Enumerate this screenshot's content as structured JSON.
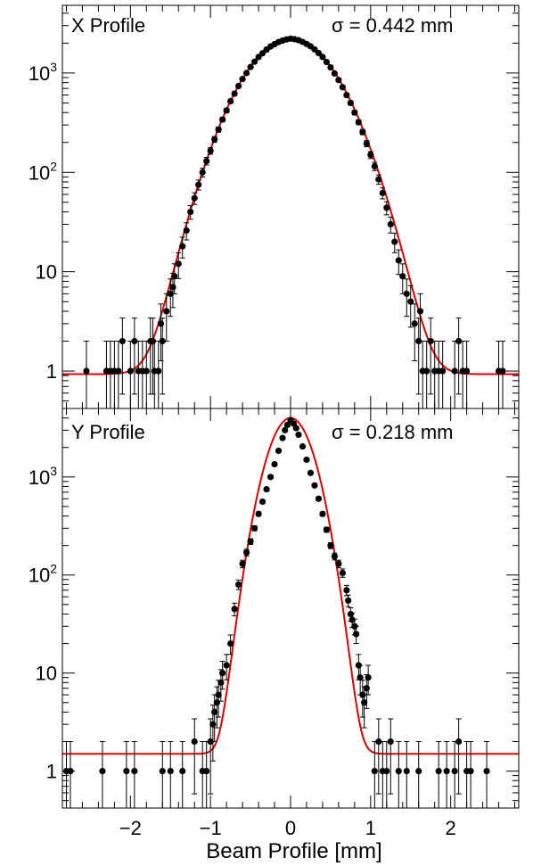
{
  "chart_data": [
    {
      "type": "scatter",
      "title": "X Profile",
      "annotation": "σ = 0.442 mm",
      "sigma_mm": 0.442,
      "amplitude": 2200,
      "baseline": 0.93,
      "xlabel": "",
      "ylabel": "",
      "xlim": [
        -2.85,
        2.85
      ],
      "ylim": [
        0.42,
        4800
      ],
      "yscale": "log",
      "x_ticks": [
        -2,
        -1,
        0,
        1,
        2
      ],
      "x_tick_labels": [],
      "y_ticks": [
        1,
        10,
        100,
        1000
      ],
      "y_tick_labels": [
        {
          "base": "1",
          "exp": ""
        },
        {
          "base": "10",
          "exp": ""
        },
        {
          "base": "10",
          "exp": "2"
        },
        {
          "base": "10",
          "exp": "3"
        }
      ],
      "series": [
        {
          "kind": "points",
          "color": "#000000",
          "points": [
            [
              -2.55,
              1
            ],
            [
              -2.3,
              1
            ],
            [
              -2.25,
              1
            ],
            [
              -2.2,
              1
            ],
            [
              -2.15,
              1
            ],
            [
              -2.1,
              2
            ],
            [
              -2.0,
              1
            ],
            [
              -1.95,
              2
            ],
            [
              -1.9,
              1
            ],
            [
              -1.85,
              1
            ],
            [
              -1.8,
              1
            ],
            [
              -1.75,
              2
            ],
            [
              -1.72,
              2
            ],
            [
              -1.7,
              1
            ],
            [
              -1.65,
              1
            ],
            [
              -1.62,
              3
            ],
            [
              -1.6,
              2
            ],
            [
              -1.55,
              4
            ],
            [
              -1.5,
              6
            ],
            [
              -1.47,
              7
            ],
            [
              -1.45,
              9
            ],
            [
              -1.4,
              12
            ],
            [
              -1.35,
              18
            ],
            [
              -1.3,
              26
            ],
            [
              -1.25,
              40
            ],
            [
              -1.2,
              55
            ],
            [
              -1.15,
              75
            ],
            [
              -1.1,
              100
            ],
            [
              -1.05,
              130
            ],
            [
              -1.0,
              165
            ],
            [
              -0.95,
              215
            ],
            [
              -0.9,
              270
            ],
            [
              -0.85,
              340
            ],
            [
              -0.8,
              420
            ],
            [
              -0.75,
              520
            ],
            [
              -0.7,
              620
            ],
            [
              -0.65,
              740
            ],
            [
              -0.6,
              870
            ],
            [
              -0.55,
              1000
            ],
            [
              -0.5,
              1150
            ],
            [
              -0.45,
              1300
            ],
            [
              -0.4,
              1450
            ],
            [
              -0.35,
              1580
            ],
            [
              -0.3,
              1720
            ],
            [
              -0.25,
              1850
            ],
            [
              -0.2,
              1950
            ],
            [
              -0.15,
              2050
            ],
            [
              -0.1,
              2120
            ],
            [
              -0.05,
              2180
            ],
            [
              0.0,
              2220
            ],
            [
              0.05,
              2190
            ],
            [
              0.1,
              2140
            ],
            [
              0.15,
              2060
            ],
            [
              0.2,
              1960
            ],
            [
              0.25,
              1860
            ],
            [
              0.3,
              1730
            ],
            [
              0.35,
              1590
            ],
            [
              0.4,
              1450
            ],
            [
              0.45,
              1290
            ],
            [
              0.5,
              1140
            ],
            [
              0.55,
              990
            ],
            [
              0.6,
              850
            ],
            [
              0.65,
              720
            ],
            [
              0.7,
              600
            ],
            [
              0.75,
              500
            ],
            [
              0.8,
              400
            ],
            [
              0.85,
              320
            ],
            [
              0.9,
              255
            ],
            [
              0.95,
              195
            ],
            [
              1.0,
              150
            ],
            [
              1.05,
              115
            ],
            [
              1.1,
              85
            ],
            [
              1.15,
              62
            ],
            [
              1.2,
              44
            ],
            [
              1.25,
              30
            ],
            [
              1.3,
              20
            ],
            [
              1.35,
              13
            ],
            [
              1.4,
              9
            ],
            [
              1.45,
              6
            ],
            [
              1.5,
              5
            ],
            [
              1.55,
              3
            ],
            [
              1.6,
              2
            ],
            [
              1.62,
              4
            ],
            [
              1.65,
              1
            ],
            [
              1.7,
              1
            ],
            [
              1.75,
              2
            ],
            [
              1.8,
              1
            ],
            [
              1.85,
              1
            ],
            [
              1.9,
              1
            ],
            [
              2.05,
              1
            ],
            [
              2.1,
              2
            ],
            [
              2.15,
              1
            ],
            [
              2.2,
              1
            ],
            [
              2.6,
              1
            ],
            [
              2.65,
              1
            ]
          ]
        },
        {
          "kind": "fit",
          "color": "#dd0000",
          "model": "gaussian_plus_constant",
          "amplitude": 2200,
          "sigma_mm": 0.442,
          "baseline": 0.93
        }
      ]
    },
    {
      "type": "scatter",
      "title": "Y Profile",
      "annotation": "σ = 0.218 mm",
      "sigma_mm": 0.218,
      "amplitude": 4000,
      "baseline": 1.5,
      "xlabel": "Beam Profile [mm]",
      "ylabel": "",
      "xlim": [
        -2.85,
        2.85
      ],
      "ylim": [
        0.42,
        5000
      ],
      "yscale": "log",
      "x_ticks": [
        -2,
        -1,
        0,
        1,
        2
      ],
      "x_tick_labels": [
        "−2",
        "−1",
        "0",
        "1",
        "2"
      ],
      "y_ticks": [
        1,
        10,
        100,
        1000
      ],
      "y_tick_labels": [
        {
          "base": "1",
          "exp": ""
        },
        {
          "base": "10",
          "exp": ""
        },
        {
          "base": "10",
          "exp": "2"
        },
        {
          "base": "10",
          "exp": "3"
        }
      ],
      "series": [
        {
          "kind": "points",
          "color": "#000000",
          "points": [
            [
              -2.8,
              1
            ],
            [
              -2.75,
              1
            ],
            [
              -2.35,
              1
            ],
            [
              -2.05,
              1
            ],
            [
              -1.95,
              1
            ],
            [
              -1.6,
              1
            ],
            [
              -1.5,
              1
            ],
            [
              -1.35,
              1
            ],
            [
              -1.2,
              2
            ],
            [
              -1.1,
              1
            ],
            [
              -1.05,
              1
            ],
            [
              -1.0,
              2
            ],
            [
              -0.97,
              3
            ],
            [
              -0.95,
              4
            ],
            [
              -0.92,
              5
            ],
            [
              -0.9,
              6
            ],
            [
              -0.87,
              8
            ],
            [
              -0.85,
              10
            ],
            [
              -0.8,
              12
            ],
            [
              -0.75,
              20
            ],
            [
              -0.7,
              45
            ],
            [
              -0.65,
              80
            ],
            [
              -0.6,
              130
            ],
            [
              -0.55,
              170
            ],
            [
              -0.5,
              220
            ],
            [
              -0.45,
              300
            ],
            [
              -0.4,
              420
            ],
            [
              -0.35,
              560
            ],
            [
              -0.3,
              750
            ],
            [
              -0.25,
              1000
            ],
            [
              -0.2,
              1350
            ],
            [
              -0.15,
              1850
            ],
            [
              -0.1,
              2500
            ],
            [
              -0.07,
              3000
            ],
            [
              -0.04,
              3400
            ],
            [
              0.0,
              3800
            ],
            [
              0.04,
              3500
            ],
            [
              0.07,
              3150
            ],
            [
              0.1,
              2700
            ],
            [
              0.15,
              2050
            ],
            [
              0.2,
              1500
            ],
            [
              0.25,
              1100
            ],
            [
              0.3,
              820
            ],
            [
              0.35,
              600
            ],
            [
              0.4,
              420
            ],
            [
              0.45,
              290
            ],
            [
              0.5,
              200
            ],
            [
              0.55,
              155
            ],
            [
              0.6,
              130
            ],
            [
              0.65,
              105
            ],
            [
              0.7,
              70
            ],
            [
              0.72,
              55
            ],
            [
              0.75,
              40
            ],
            [
              0.77,
              35
            ],
            [
              0.8,
              30
            ],
            [
              0.82,
              25
            ],
            [
              0.85,
              12
            ],
            [
              0.87,
              9
            ],
            [
              0.9,
              6
            ],
            [
              0.92,
              5
            ],
            [
              0.95,
              7
            ],
            [
              0.97,
              9
            ],
            [
              1.05,
              1
            ],
            [
              1.1,
              2
            ],
            [
              1.15,
              1
            ],
            [
              1.2,
              1
            ],
            [
              1.25,
              2
            ],
            [
              1.35,
              1
            ],
            [
              1.45,
              1
            ],
            [
              1.6,
              1
            ],
            [
              1.85,
              1
            ],
            [
              1.95,
              1
            ],
            [
              2.05,
              1
            ],
            [
              2.1,
              2
            ],
            [
              2.2,
              1
            ],
            [
              2.25,
              1
            ],
            [
              2.45,
              1
            ]
          ]
        },
        {
          "kind": "fit",
          "color": "#dd0000",
          "model": "gaussian_plus_constant",
          "amplitude": 4000,
          "sigma_mm": 0.218,
          "baseline": 1.5
        }
      ]
    }
  ]
}
